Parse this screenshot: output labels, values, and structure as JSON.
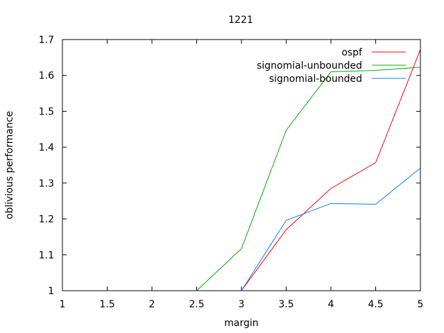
{
  "chart_data": {
    "type": "line",
    "title": "1221",
    "xlabel": "margin",
    "ylabel": "oblivious performance",
    "xlim": [
      1,
      5
    ],
    "ylim": [
      1,
      1.7
    ],
    "xticks": [
      1,
      1.5,
      2,
      2.5,
      3,
      3.5,
      4,
      4.5,
      5
    ],
    "xtick_labels": [
      "1",
      "1.5",
      "2",
      "2.5",
      "3",
      "3.5",
      "4",
      "4.5",
      "5"
    ],
    "yticks": [
      1,
      1.1,
      1.2,
      1.3,
      1.4,
      1.5,
      1.6,
      1.7
    ],
    "ytick_labels": [
      "1",
      "1.1",
      "1.2",
      "1.3",
      "1.4",
      "1.5",
      "1.6",
      "1.7"
    ],
    "grid": false,
    "legend_position": "top-right",
    "series": [
      {
        "name": "ospf",
        "color": "#ff0000",
        "x": [
          1,
          1.5,
          2,
          2.5,
          3,
          3.5,
          4,
          4.5,
          5
        ],
        "y": [
          1.0,
          1.0,
          1.0,
          1.0,
          1.0,
          1.17,
          1.285,
          1.357,
          1.672
        ]
      },
      {
        "name": "signomial-unbounded",
        "color": "#00aa00",
        "x": [
          1,
          1.5,
          2,
          2.5,
          3,
          3.5,
          4,
          4.5,
          5
        ],
        "y": [
          1.0,
          1.0,
          1.0,
          1.0,
          1.117,
          1.447,
          1.61,
          1.614,
          1.623
        ]
      },
      {
        "name": "signomial-bounded",
        "color": "#0080ff",
        "x": [
          1,
          1.5,
          2,
          2.5,
          3,
          3.5,
          4,
          4.5,
          5
        ],
        "y": [
          1.0,
          1.0,
          1.0,
          1.0,
          1.0,
          1.196,
          1.243,
          1.241,
          1.342
        ]
      }
    ]
  }
}
